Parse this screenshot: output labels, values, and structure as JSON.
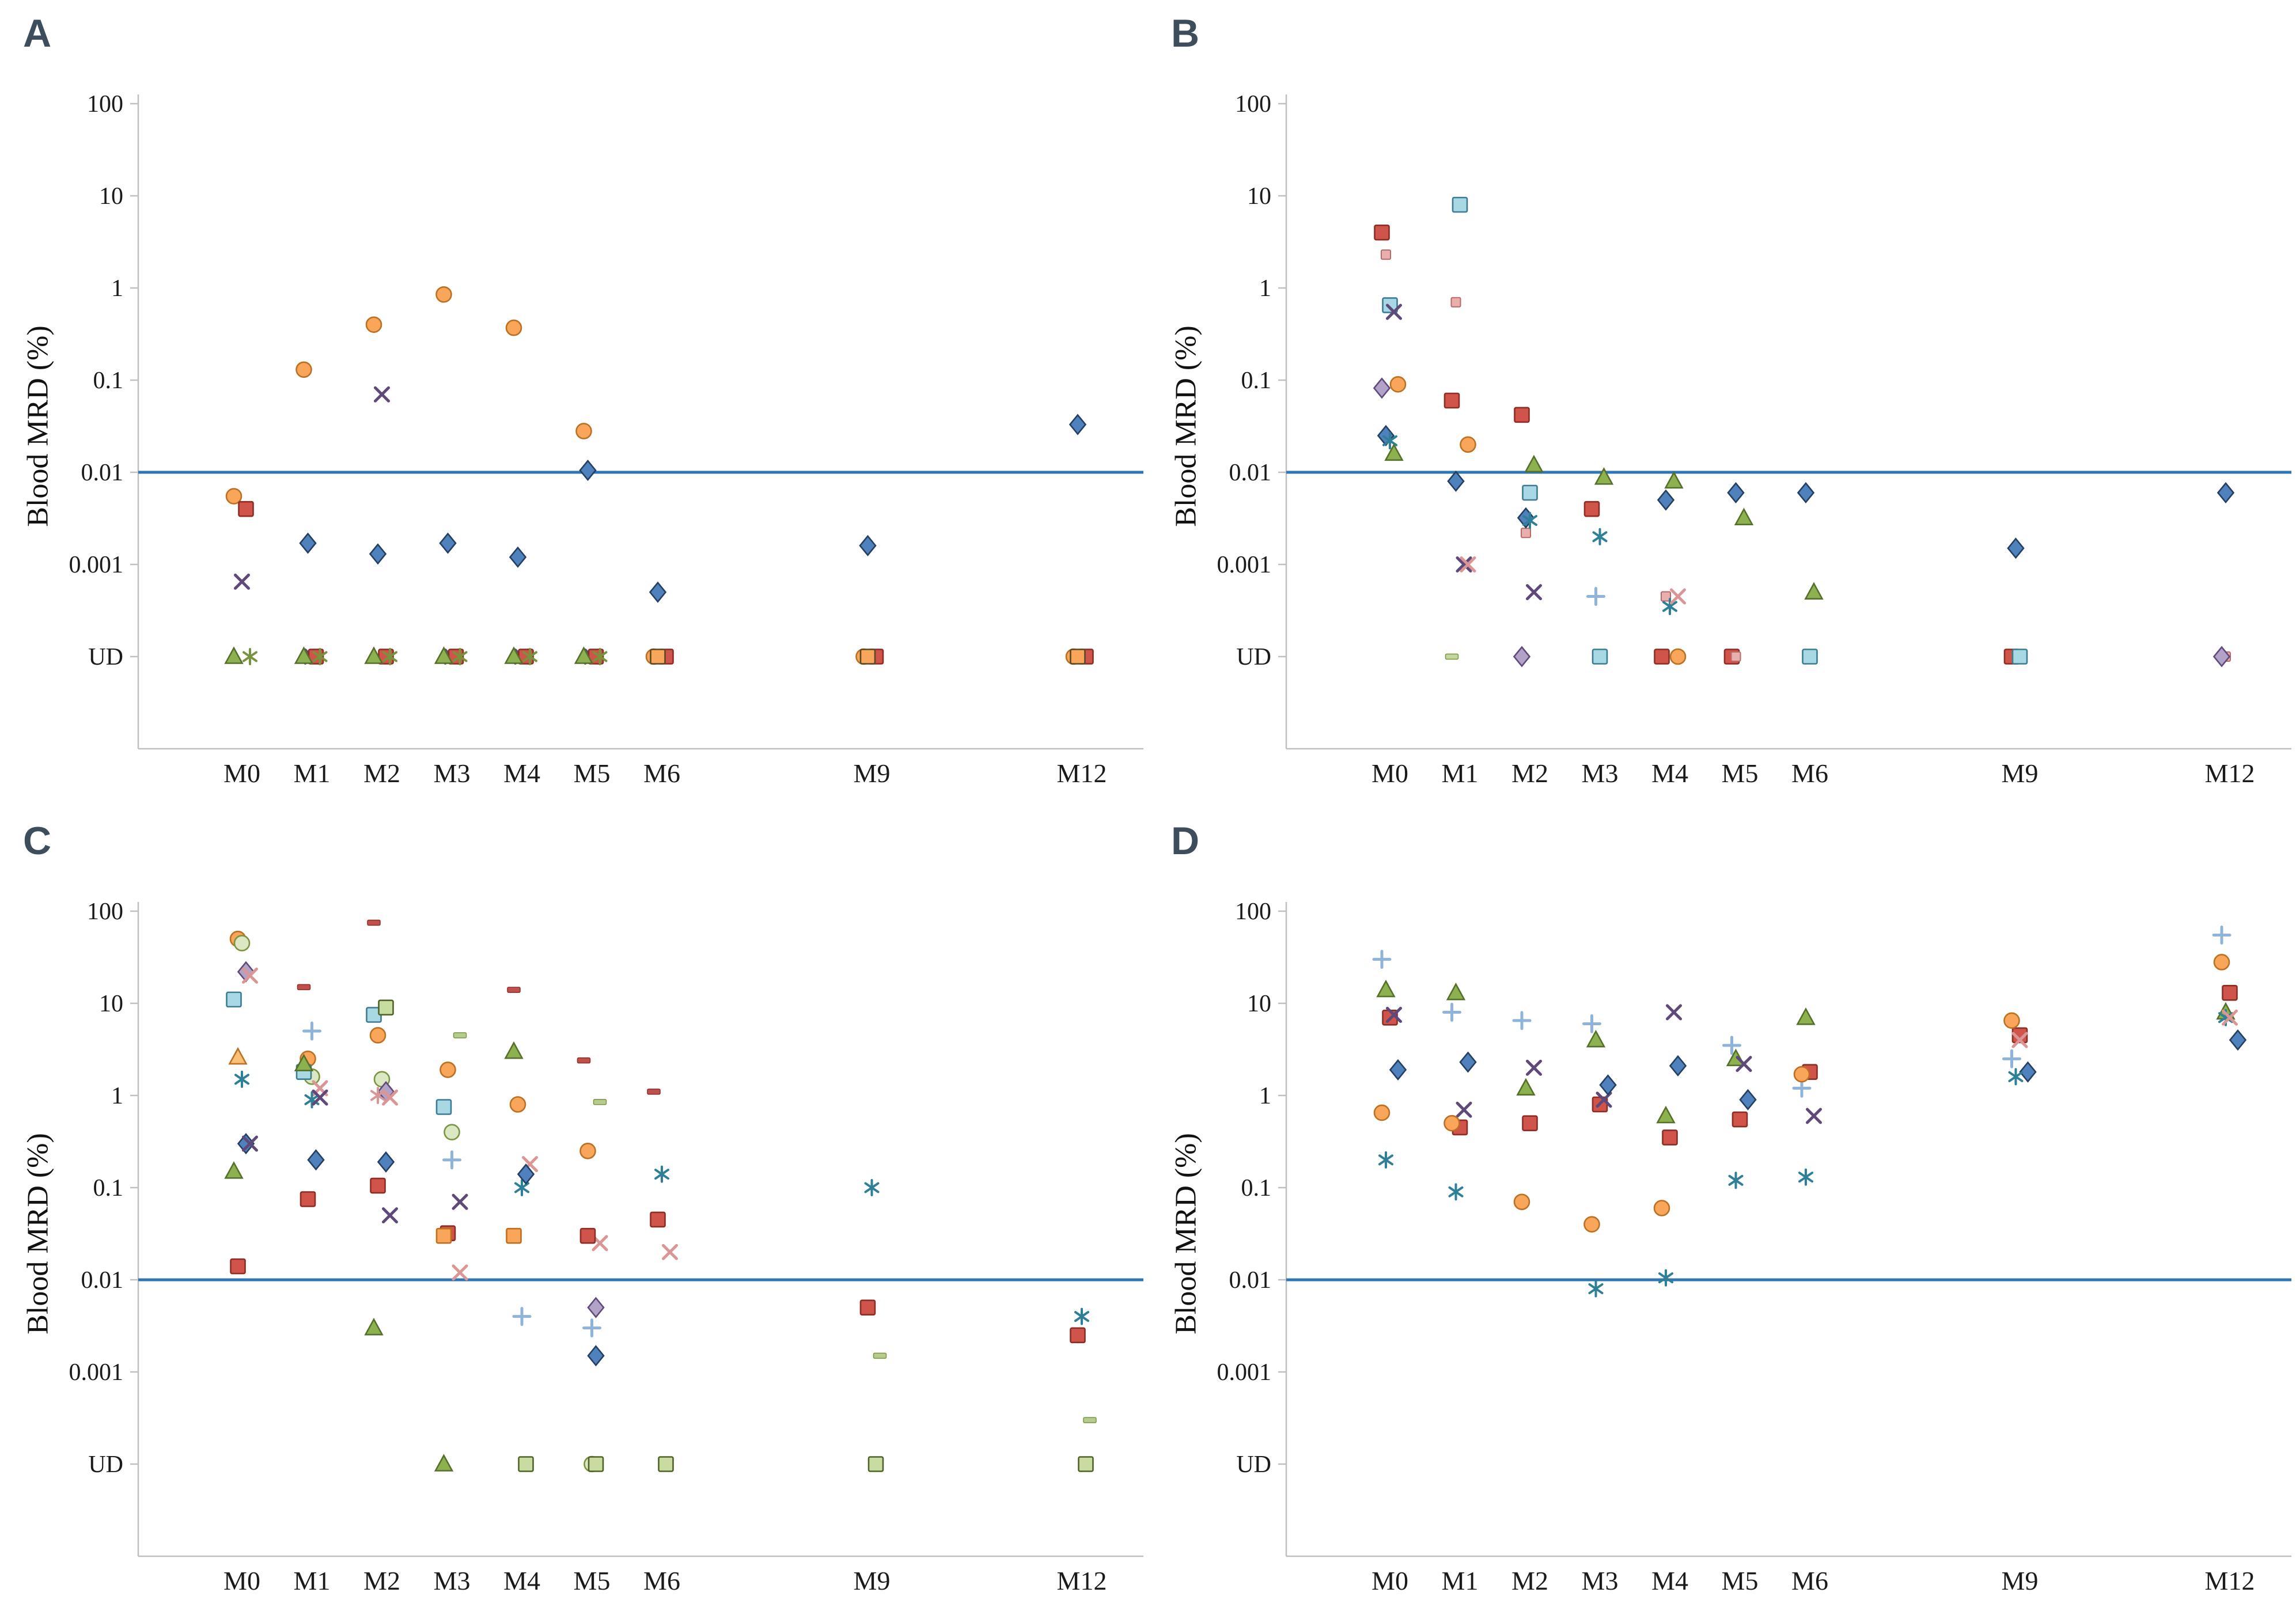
{
  "figure": {
    "background": "#ffffff",
    "ylabel": "Blood MRD (%)",
    "ytick_labels": [
      "100",
      "10",
      "1",
      "0.1",
      "0.01",
      "0.001",
      "UD"
    ],
    "xtick_labels": [
      "M0",
      "M1",
      "M2",
      "M3",
      "M4",
      "M5",
      "M6",
      "M9",
      "M12"
    ],
    "x_months": [
      0,
      1,
      2,
      3,
      4,
      5,
      6,
      9,
      12
    ],
    "yscale": "log",
    "ud_meaning": "undetectable",
    "threshold_value": 0.01,
    "threshold_color": "#2e75b6",
    "axis_color": "#bfbfbf",
    "text_color": "#1a1a1a",
    "panel_label_color": "#3d4d5c"
  },
  "chart_data": [
    {
      "type": "scatter",
      "panel_label": "A",
      "ylabel": "Blood MRD (%)",
      "x_categories": [
        "M0",
        "M1",
        "M2",
        "M3",
        "M4",
        "M5",
        "M6",
        "M9",
        "M12"
      ],
      "ylim": [
        "UD",
        100
      ],
      "threshold": 0.01,
      "series": [
        {
          "name": "orange-circle",
          "marker": "circle",
          "color": "#f9a65a",
          "stroke": "#bc7022",
          "values": [
            0.0055,
            0.13,
            0.4,
            0.85,
            0.37,
            0.028,
            "UD",
            "UD",
            "UD"
          ]
        },
        {
          "name": "blue-diamond",
          "marker": "diamond",
          "color": "#4f81bd",
          "stroke": "#243f60",
          "values": [
            null,
            0.0017,
            0.0013,
            0.0017,
            0.0012,
            0.0105,
            0.0005,
            0.0016,
            0.033
          ]
        },
        {
          "name": "purple-x",
          "marker": "x",
          "color": "#5f497a",
          "stroke": "#5f497a",
          "values": [
            0.00065,
            "UD",
            0.07,
            "UD",
            "UD",
            "UD",
            null,
            null,
            null
          ]
        },
        {
          "name": "red-square",
          "marker": "square",
          "color": "#d0544a",
          "stroke": "#8c2d26",
          "values": [
            0.004,
            "UD",
            "UD",
            "UD",
            "UD",
            "UD",
            "UD",
            "UD",
            "UD"
          ]
        },
        {
          "name": "green-asterisk",
          "marker": "asterisk",
          "color": "#77933c",
          "stroke": "#77933c",
          "values": [
            "UD",
            "UD",
            "UD",
            "UD",
            "UD",
            "UD",
            null,
            null,
            null
          ]
        },
        {
          "name": "green-triangle",
          "marker": "triangle",
          "color": "#8cb14e",
          "stroke": "#55702a",
          "values": [
            "UD",
            "UD",
            "UD",
            "UD",
            "UD",
            "UD",
            null,
            null,
            null
          ]
        },
        {
          "name": "orange-square",
          "marker": "square",
          "color": "#f9a65a",
          "stroke": "#594a25",
          "values": [
            null,
            null,
            null,
            null,
            null,
            null,
            "UD",
            "UD",
            "UD"
          ]
        }
      ]
    },
    {
      "type": "scatter",
      "panel_label": "B",
      "ylabel": "Blood MRD (%)",
      "x_categories": [
        "M0",
        "M1",
        "M2",
        "M3",
        "M4",
        "M5",
        "M6",
        "M9",
        "M12"
      ],
      "ylim": [
        "UD",
        100
      ],
      "threshold": 0.01,
      "series": [
        {
          "name": "red-square",
          "marker": "square",
          "color": "#d0544a",
          "stroke": "#8c2d26",
          "values": [
            4,
            0.06,
            0.042,
            0.004,
            "UD",
            "UD",
            null,
            "UD",
            null
          ]
        },
        {
          "name": "pink-square",
          "marker": "small-square",
          "color": "#e8afad",
          "stroke": "#b96a68",
          "values": [
            2.3,
            0.7,
            0.0022,
            null,
            0.00045,
            "UD",
            null,
            null,
            "UD"
          ]
        },
        {
          "name": "cyan-square",
          "marker": "square",
          "color": "#a8d8e4",
          "stroke": "#3c7c93",
          "values": [
            0.65,
            8,
            0.006,
            "UD",
            null,
            null,
            "UD",
            "UD",
            null
          ]
        },
        {
          "name": "purple-x",
          "marker": "x",
          "color": "#5f497a",
          "stroke": "#5f497a",
          "values": [
            0.55,
            0.001,
            0.0005,
            null,
            null,
            null,
            null,
            null,
            null
          ]
        },
        {
          "name": "orange-circle",
          "marker": "circle",
          "color": "#f9a65a",
          "stroke": "#bc7022",
          "values": [
            0.09,
            0.02,
            null,
            null,
            "UD",
            null,
            null,
            null,
            null
          ]
        },
        {
          "name": "purple-diamond",
          "marker": "diamond",
          "color": "#b3a2c7",
          "stroke": "#604a7b",
          "values": [
            0.082,
            null,
            "UD",
            null,
            null,
            null,
            null,
            null,
            "UD"
          ]
        },
        {
          "name": "blue-diamond",
          "marker": "diamond",
          "color": "#4f81bd",
          "stroke": "#243f60",
          "values": [
            0.025,
            0.008,
            0.0032,
            null,
            0.005,
            0.006,
            0.006,
            0.0015,
            0.006
          ]
        },
        {
          "name": "teal-asterisk",
          "marker": "asterisk",
          "color": "#2e8099",
          "stroke": "#2e8099",
          "values": [
            0.022,
            null,
            0.003,
            0.002,
            0.00035,
            null,
            null,
            null,
            null
          ]
        },
        {
          "name": "green-triangle",
          "marker": "triangle",
          "color": "#8cb14e",
          "stroke": "#55702a",
          "values": [
            0.016,
            null,
            0.012,
            0.0088,
            0.008,
            0.0032,
            0.0005,
            null,
            null
          ]
        },
        {
          "name": "pink-x",
          "marker": "x",
          "color": "#d99694",
          "stroke": "#d99694",
          "values": [
            null,
            0.001,
            null,
            null,
            0.00045,
            null,
            null,
            null,
            null
          ]
        },
        {
          "name": "green-dash",
          "marker": "dash",
          "color": "#c3d69b",
          "stroke": "#7a9440",
          "values": [
            null,
            "UD",
            null,
            null,
            null,
            null,
            null,
            null,
            null
          ]
        },
        {
          "name": "blue-plus",
          "marker": "plus",
          "color": "#8eb4d9",
          "stroke": "#8eb4d9",
          "values": [
            null,
            null,
            null,
            0.00045,
            null,
            null,
            null,
            null,
            null
          ]
        }
      ]
    },
    {
      "type": "scatter",
      "panel_label": "C",
      "ylabel": "Blood MRD (%)",
      "x_categories": [
        "M0",
        "M1",
        "M2",
        "M3",
        "M4",
        "M5",
        "M6",
        "M9",
        "M12"
      ],
      "ylim": [
        "UD",
        100
      ],
      "threshold": 0.01,
      "series": [
        {
          "name": "red-dash",
          "marker": "dash",
          "color": "#c0504d",
          "stroke": "#8c2d26",
          "values": [
            null,
            15,
            75,
            null,
            14,
            2.4,
            1.1,
            null,
            null
          ]
        },
        {
          "name": "orange-circle",
          "marker": "circle",
          "color": "#f9a65a",
          "stroke": "#bc7022",
          "values": [
            50,
            2.5,
            4.5,
            1.9,
            0.8,
            0.25,
            null,
            null,
            null
          ]
        },
        {
          "name": "light-green-circle",
          "marker": "circle",
          "color": "#dce8c4",
          "stroke": "#7a9440",
          "values": [
            45,
            1.6,
            1.5,
            0.4,
            null,
            "UD",
            null,
            null,
            null
          ]
        },
        {
          "name": "purple-diamond",
          "marker": "diamond",
          "color": "#b3a2c7",
          "stroke": "#604a7b",
          "values": [
            22,
            null,
            1.1,
            null,
            null,
            0.005,
            null,
            null,
            null
          ]
        },
        {
          "name": "pink-x",
          "marker": "x",
          "color": "#d99694",
          "stroke": "#d99694",
          "values": [
            20,
            1.2,
            0.95,
            0.012,
            0.18,
            0.025,
            0.02,
            null,
            null
          ]
        },
        {
          "name": "cyan-square",
          "marker": "square",
          "color": "#a8d8e4",
          "stroke": "#3c7c93",
          "values": [
            11,
            1.8,
            7.5,
            0.75,
            null,
            null,
            null,
            null,
            null
          ]
        },
        {
          "name": "orange-triangle",
          "marker": "triangle",
          "color": "#fbbf77",
          "stroke": "#bc7022",
          "values": [
            2.6,
            null,
            null,
            null,
            null,
            null,
            null,
            null,
            null
          ]
        },
        {
          "name": "teal-asterisk",
          "marker": "asterisk",
          "color": "#2e8099",
          "stroke": "#2e8099",
          "values": [
            1.5,
            0.9,
            null,
            null,
            0.1,
            null,
            0.14,
            0.1,
            0.004
          ]
        },
        {
          "name": "blue-diamond",
          "marker": "diamond",
          "color": "#4f81bd",
          "stroke": "#243f60",
          "values": [
            0.3,
            0.2,
            0.19,
            null,
            0.14,
            0.0015,
            null,
            null,
            null
          ]
        },
        {
          "name": "purple-x",
          "marker": "x",
          "color": "#5f497a",
          "stroke": "#5f497a",
          "values": [
            0.3,
            0.95,
            0.05,
            0.07,
            null,
            null,
            null,
            null,
            null
          ]
        },
        {
          "name": "green-triangle",
          "marker": "triangle",
          "color": "#8cb14e",
          "stroke": "#55702a",
          "values": [
            0.15,
            2.2,
            0.003,
            "UD",
            3.0,
            null,
            null,
            null,
            null
          ]
        },
        {
          "name": "red-square",
          "marker": "square",
          "color": "#d0544a",
          "stroke": "#8c2d26",
          "values": [
            0.014,
            0.075,
            0.105,
            0.032,
            null,
            0.03,
            0.045,
            0.005,
            0.0025
          ]
        },
        {
          "name": "blue-plus",
          "marker": "plus",
          "color": "#8eb4d9",
          "stroke": "#8eb4d9",
          "values": [
            null,
            5,
            null,
            0.2,
            0.004,
            0.003,
            null,
            null,
            null
          ]
        },
        {
          "name": "green-square",
          "marker": "square",
          "color": "#c8dba0",
          "stroke": "#4f6228",
          "values": [
            null,
            null,
            9,
            null,
            "UD",
            "UD",
            "UD",
            "UD",
            "UD"
          ]
        },
        {
          "name": "green-dash",
          "marker": "dash",
          "color": "#b5cc8e",
          "stroke": "#7a9440",
          "values": [
            null,
            null,
            null,
            4.5,
            null,
            0.85,
            null,
            0.0015,
            0.0003
          ]
        },
        {
          "name": "orange-square",
          "marker": "square",
          "color": "#f9a65a",
          "stroke": "#bc7022",
          "values": [
            null,
            null,
            null,
            0.03,
            0.03,
            null,
            null,
            null,
            null
          ]
        },
        {
          "name": "pink-asterisk",
          "marker": "asterisk",
          "color": "#d99694",
          "stroke": "#d99694",
          "values": [
            null,
            null,
            1.0,
            null,
            null,
            null,
            null,
            null,
            null
          ]
        }
      ]
    },
    {
      "type": "scatter",
      "panel_label": "D",
      "ylabel": "Blood MRD (%)",
      "x_categories": [
        "M0",
        "M1",
        "M2",
        "M3",
        "M4",
        "M5",
        "M6",
        "M9",
        "M12"
      ],
      "ylim": [
        "UD",
        100
      ],
      "threshold": 0.01,
      "series": [
        {
          "name": "blue-plus",
          "marker": "plus",
          "color": "#8eb4d9",
          "stroke": "#8eb4d9",
          "values": [
            30,
            8,
            6.5,
            6.0,
            null,
            3.5,
            1.2,
            2.5,
            55
          ]
        },
        {
          "name": "green-triangle",
          "marker": "triangle",
          "color": "#8cb14e",
          "stroke": "#55702a",
          "values": [
            14,
            13,
            1.2,
            4,
            0.6,
            2.5,
            7,
            null,
            8
          ]
        },
        {
          "name": "red-square",
          "marker": "square",
          "color": "#d0544a",
          "stroke": "#8c2d26",
          "values": [
            7,
            0.45,
            0.5,
            0.8,
            0.35,
            0.55,
            1.8,
            4.5,
            13
          ]
        },
        {
          "name": "purple-x",
          "marker": "x",
          "color": "#5f497a",
          "stroke": "#5f497a",
          "values": [
            7.5,
            0.7,
            2.0,
            0.9,
            8,
            2.2,
            0.6,
            null,
            null
          ]
        },
        {
          "name": "blue-diamond",
          "marker": "diamond",
          "color": "#4f81bd",
          "stroke": "#243f60",
          "values": [
            1.9,
            2.3,
            null,
            1.3,
            2.1,
            0.9,
            null,
            1.8,
            4
          ]
        },
        {
          "name": "orange-circle",
          "marker": "circle",
          "color": "#f9a65a",
          "stroke": "#bc7022",
          "values": [
            0.65,
            0.5,
            0.07,
            0.04,
            0.06,
            null,
            1.7,
            6.5,
            28
          ]
        },
        {
          "name": "teal-asterisk",
          "marker": "asterisk",
          "color": "#2e8099",
          "stroke": "#2e8099",
          "values": [
            0.2,
            0.09,
            null,
            0.008,
            0.0105,
            0.12,
            0.13,
            1.6,
            7
          ]
        },
        {
          "name": "pink-x",
          "marker": "x",
          "color": "#d99694",
          "stroke": "#d99694",
          "values": [
            null,
            null,
            null,
            null,
            null,
            null,
            null,
            4.0,
            7.0
          ]
        }
      ]
    }
  ]
}
